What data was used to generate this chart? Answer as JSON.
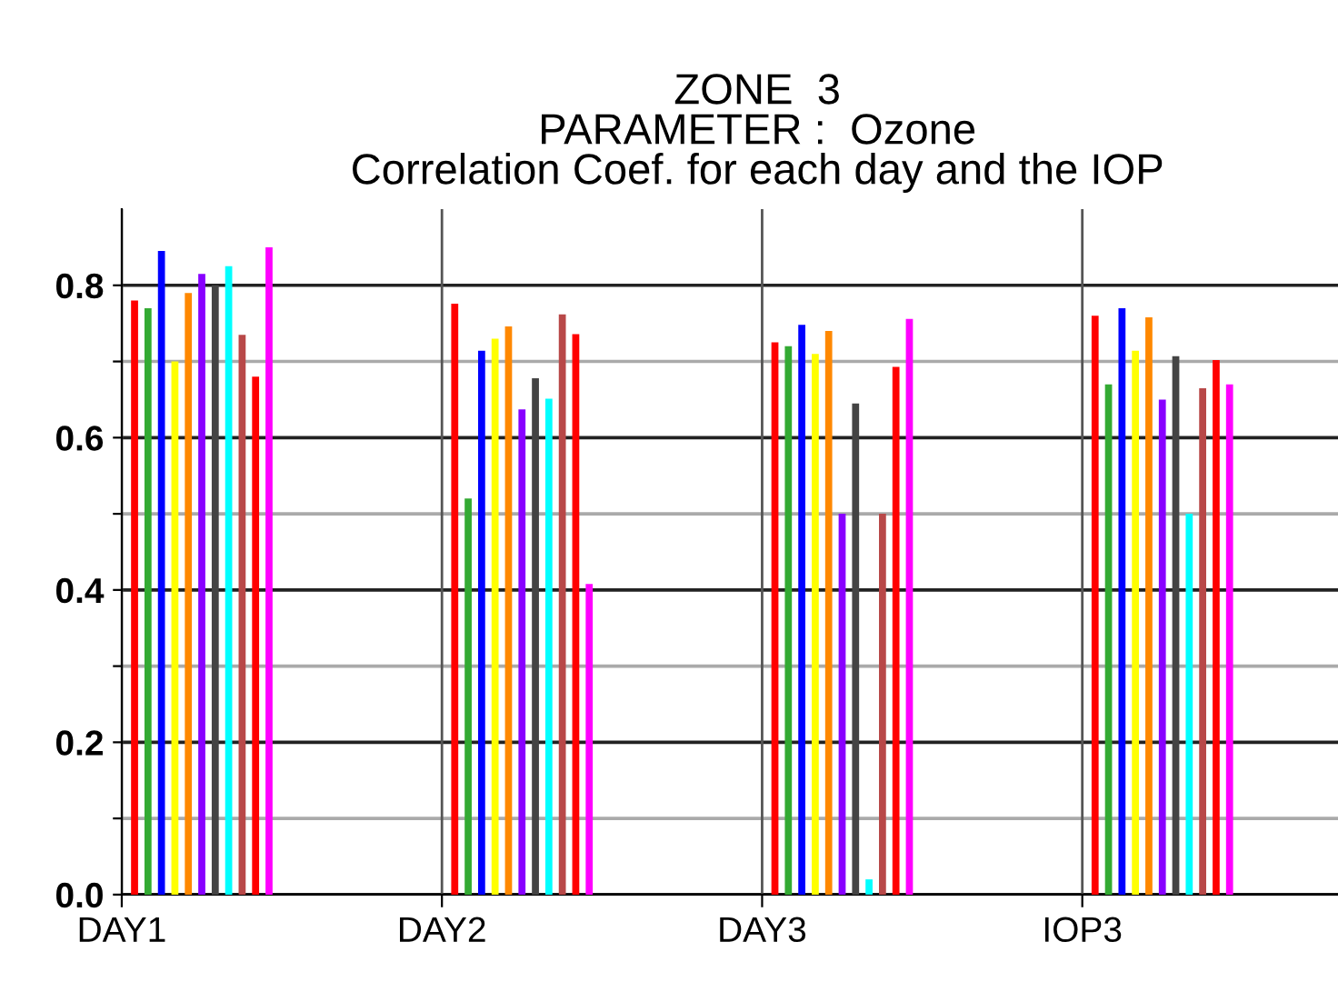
{
  "chart_data": {
    "type": "bar",
    "title": "ZONE  3\nPARAMETER :  Ozone\nCorrelation Coef. for each day and the IOP",
    "categories": [
      "DAY1",
      "DAY2",
      "DAY3",
      "IOP3"
    ],
    "series": [
      {
        "color": "#ff0000",
        "values": [
          0.78,
          0.776,
          0.725,
          0.76
        ]
      },
      {
        "color": "#33aa33",
        "values": [
          0.77,
          0.52,
          0.72,
          0.67
        ]
      },
      {
        "color": "#0000ff",
        "values": [
          0.845,
          0.714,
          0.748,
          0.77
        ]
      },
      {
        "color": "#ffff00",
        "values": [
          0.7,
          0.73,
          0.71,
          0.714
        ]
      },
      {
        "color": "#ff8800",
        "values": [
          0.79,
          0.746,
          0.74,
          0.758
        ]
      },
      {
        "color": "#8800ff",
        "values": [
          0.815,
          0.637,
          0.5,
          0.65
        ]
      },
      {
        "color": "#444444",
        "values": [
          0.8,
          0.678,
          0.645,
          0.707
        ]
      },
      {
        "color": "#00ffff",
        "values": [
          0.825,
          0.651,
          0.02,
          0.5
        ]
      },
      {
        "color": "#b84848",
        "values": [
          0.735,
          0.762,
          0.5,
          0.665
        ]
      },
      {
        "color": "#ff0000",
        "values": [
          0.68,
          0.736,
          0.693,
          0.702
        ]
      },
      {
        "color": "#ff00ff",
        "values": [
          0.85,
          0.408,
          0.756,
          0.67
        ]
      }
    ],
    "ylim": [
      0,
      0.9
    ],
    "yticks": [
      {
        "value": 0,
        "label": "0.0"
      },
      {
        "value": 0.1,
        "label": null
      },
      {
        "value": 0.2,
        "label": "0.2"
      },
      {
        "value": 0.3,
        "label": null
      },
      {
        "value": 0.4,
        "label": "0.4"
      },
      {
        "value": 0.5,
        "label": null
      },
      {
        "value": 0.6,
        "label": "0.6"
      },
      {
        "value": 0.7,
        "label": null
      },
      {
        "value": 0.8,
        "label": "0.8"
      }
    ],
    "grid": true
  }
}
